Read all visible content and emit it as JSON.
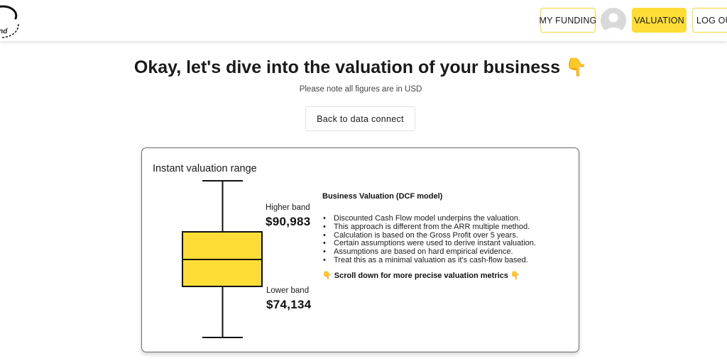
{
  "logo": {
    "text": "und"
  },
  "nav": {
    "funding_label": "MY FUNDING",
    "valuation_label": "VALUATION",
    "logout_label": "LOG OUT"
  },
  "header": {
    "title": "Okay, let's dive into the valuation of your business",
    "title_emoji": "👇",
    "subtitle": "Please note all figures are in USD"
  },
  "back_button_label": "Back to data connect",
  "card": {
    "title": "Instant valuation range",
    "higher_band_label": "Higher band",
    "higher_band_value": "$90,983",
    "lower_band_label": "Lower band",
    "lower_band_value": "$74,134",
    "dcf": {
      "heading": "Business Valuation (DCF model)",
      "bullets": [
        "Discounted Cash Flow model underpins the valuation.",
        "This approach is different from the ARR multiple method.",
        "Calculation is based on the Gross Profit over 5 years.",
        "Certain assumptions were used to derive instant valuation.",
        "Assumptions are based on hard empirical evidence.",
        "Treat this as a minimal valuation as it's cash-flow based."
      ],
      "scroll_emoji": "👇",
      "scroll_note": "Scroll down for more precise valuation metrics"
    }
  },
  "colors": {
    "accent": "#fddd36",
    "accent_border": "#f3d435",
    "box_fill": "#fddd36",
    "card_border": "#6b6b6b"
  }
}
